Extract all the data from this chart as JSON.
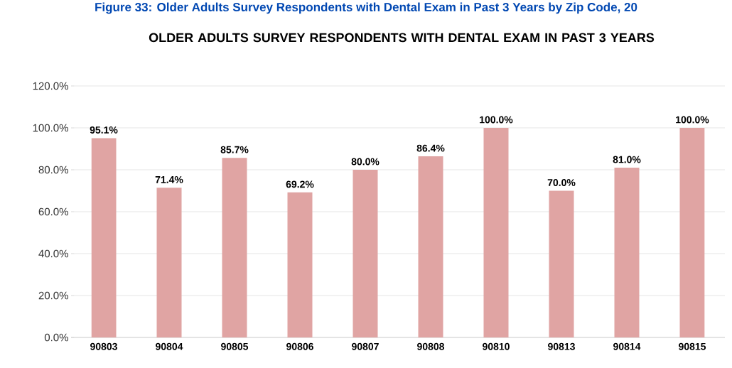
{
  "chart_data": {
    "type": "bar",
    "title": "OLDER ADULTS SURVEY RESPONDENTS WITH DENTAL EXAM IN PAST 3 YEARS",
    "annotations": [
      "Figure 33: Older Adults Survey Respondents with Dental Exam in Past 3 Years by Zip Code, 20"
    ],
    "categories": [
      "90803",
      "90804",
      "90805",
      "90806",
      "90807",
      "90808",
      "90810",
      "90813",
      "90814",
      "90815"
    ],
    "values": [
      95.1,
      71.4,
      85.7,
      69.2,
      80.0,
      86.4,
      100.0,
      70.0,
      81.0,
      100.0
    ],
    "value_labels": [
      "95.1%",
      "71.4%",
      "85.7%",
      "69.2%",
      "80.0%",
      "86.4%",
      "100.0%",
      "70.0%",
      "81.0%",
      "100.0%"
    ],
    "color": "#e0a4a3",
    "ylim": [
      0,
      120
    ],
    "yticks": [
      {
        "value": 0,
        "label": "0.0%"
      },
      {
        "value": 20,
        "label": "20.0%"
      },
      {
        "value": 40,
        "label": "40.0%"
      },
      {
        "value": 60,
        "label": "60.0%"
      },
      {
        "value": 80,
        "label": "80.0%"
      },
      {
        "value": 100,
        "label": "100.0%"
      },
      {
        "value": 120,
        "label": "120.0%"
      }
    ],
    "grid": "y"
  }
}
